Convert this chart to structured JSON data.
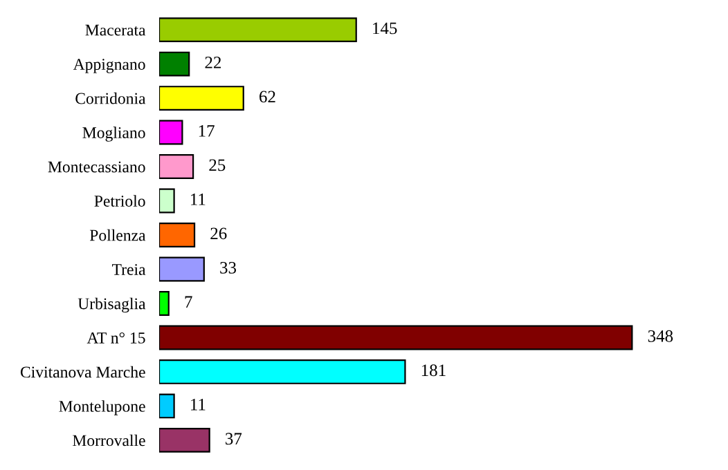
{
  "chart_data": {
    "type": "bar",
    "orientation": "horizontal",
    "categories": [
      "Macerata",
      "Appignano",
      "Corridonia",
      "Mogliano",
      "Montecassiano",
      "Petriolo",
      "Pollenza",
      "Treia",
      "Urbisaglia",
      "AT n° 15",
      "Civitanova Marche",
      "Montelupone",
      "Morrovalle"
    ],
    "values": [
      145,
      22,
      62,
      17,
      25,
      11,
      26,
      33,
      7,
      348,
      181,
      11,
      37
    ],
    "colors": [
      "#99cc00",
      "#008000",
      "#ffff00",
      "#ff00ff",
      "#ff99cc",
      "#ccffcc",
      "#ff6600",
      "#9999ff",
      "#00ff00",
      "#800000",
      "#00ffff",
      "#00ccff",
      "#993366"
    ],
    "data_labels": true,
    "grid": false,
    "legend": false
  }
}
